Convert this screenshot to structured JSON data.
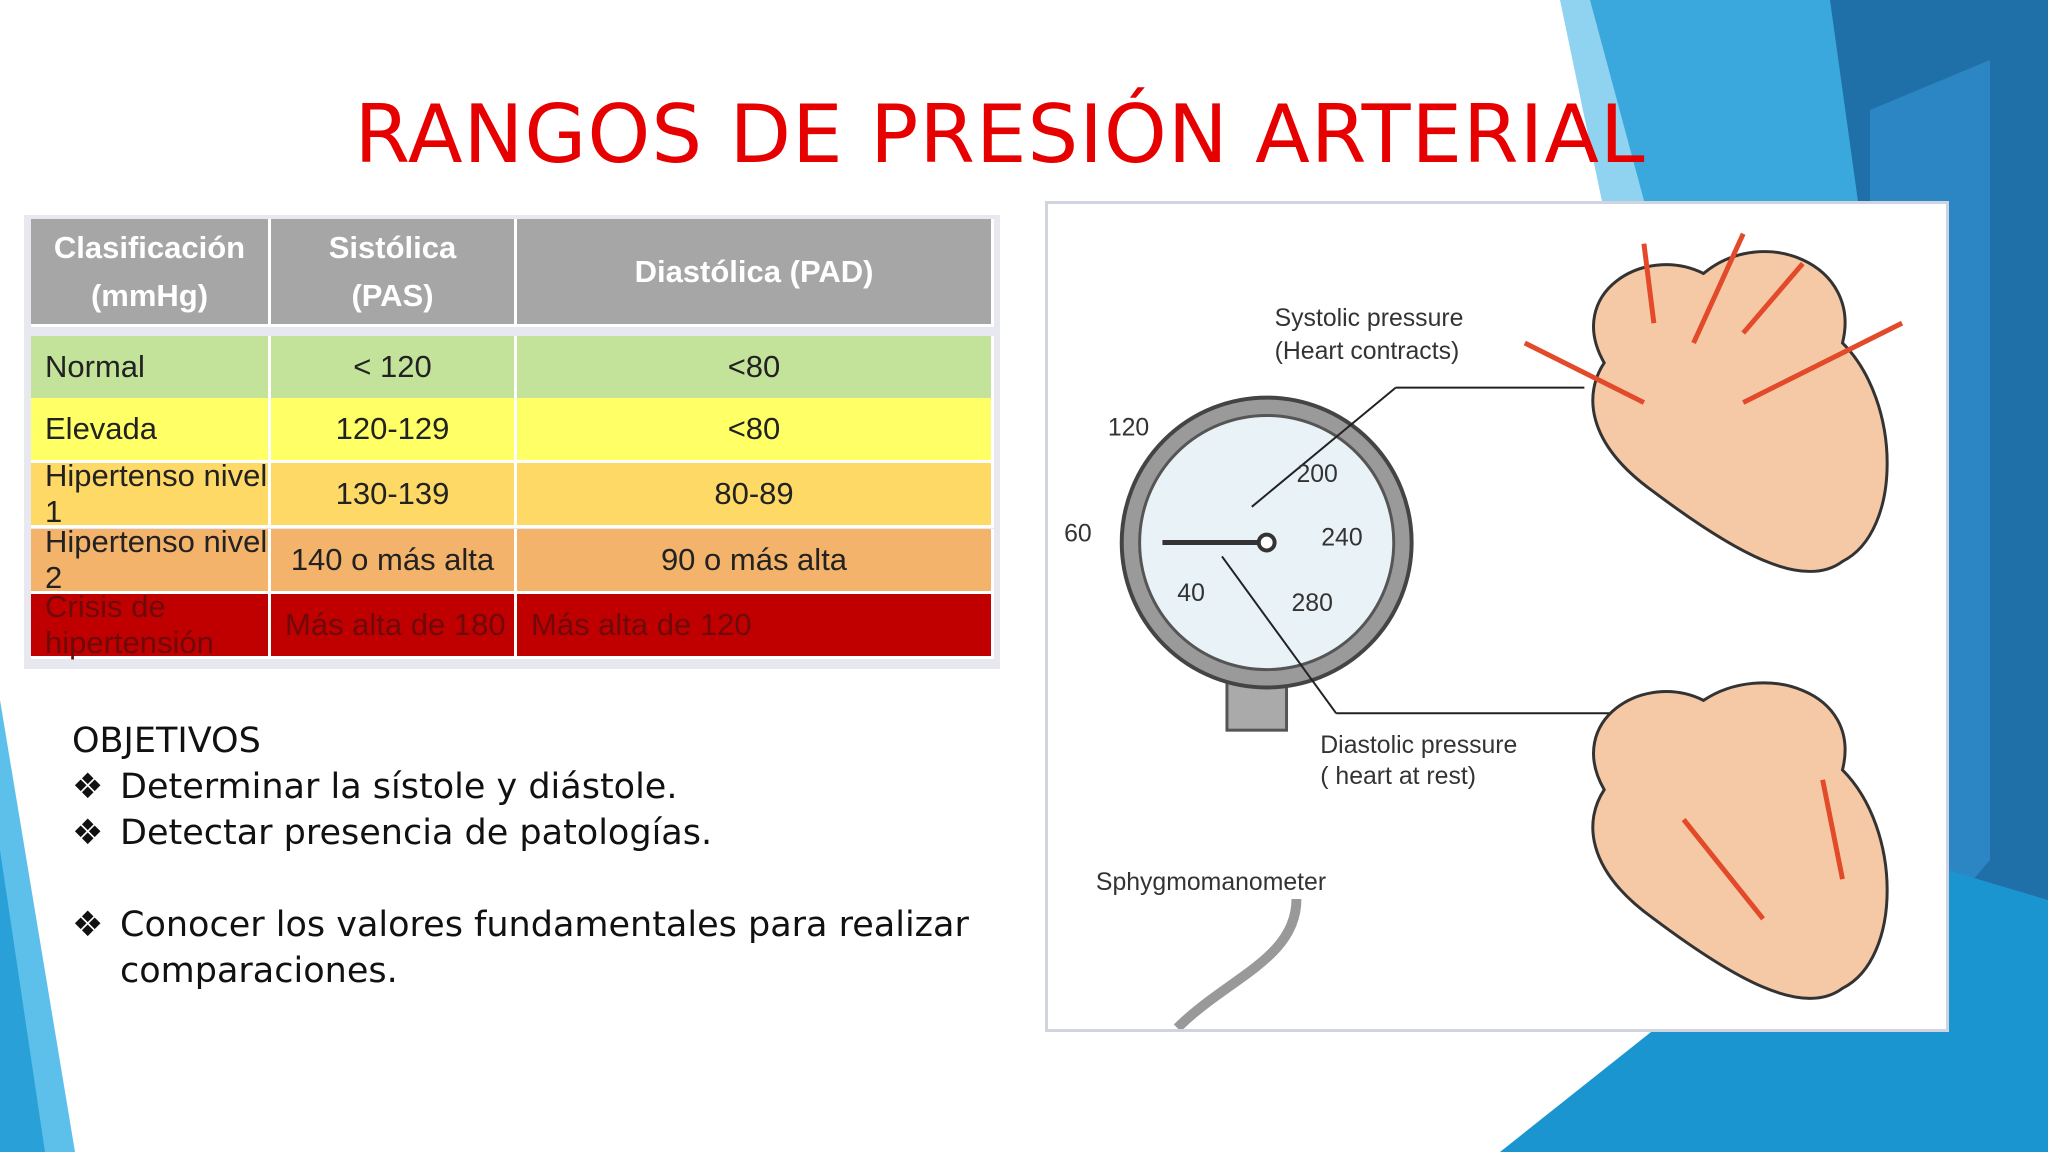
{
  "header": {
    "title": "RANGOS DE PRESIÓN ARTERIAL"
  },
  "table": {
    "columns": [
      [
        "Clasificación",
        "(mmHg)"
      ],
      [
        "Sistólica",
        "(PAS)"
      ],
      [
        "Diastólica (PAD)"
      ]
    ],
    "rows": [
      [
        "Normal",
        "< 120",
        "<80"
      ],
      [
        "Elevada",
        "120-129",
        "<80"
      ],
      [
        "Hipertenso nivel 1",
        "130-139",
        "80-89"
      ],
      [
        "Hipertenso nivel 2",
        "140 o más alta",
        "90 o más alta"
      ],
      [
        "Crisis de hipertensión",
        "Más alta de 180",
        "Más alta de 120"
      ]
    ]
  },
  "objectives": {
    "heading": "OBJETIVOS",
    "items": [
      "Determinar la sístole y diástole.",
      "Detectar presencia de patologías.",
      "Conocer los valores fundamentales para realizar comparaciones."
    ]
  },
  "figure": {
    "systolic": [
      "Systolic pressure",
      "(Heart contracts)"
    ],
    "diastolic": [
      "Diastolic pressure",
      "( heart at rest)"
    ],
    "device": "Sphygmomanometer",
    "gauge": [
      "120",
      "60",
      "200",
      "240",
      "40",
      "280"
    ]
  }
}
